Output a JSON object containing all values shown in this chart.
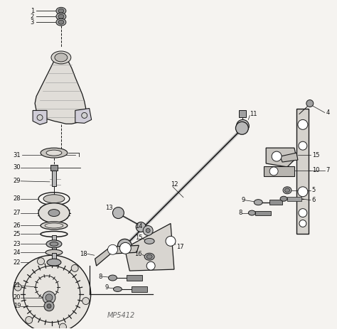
{
  "bg_color": "#f5f3f0",
  "line_color": "#1a1a1a",
  "watermark": "MP5412",
  "figsize": [
    4.74,
    4.63
  ],
  "dpi": 100
}
